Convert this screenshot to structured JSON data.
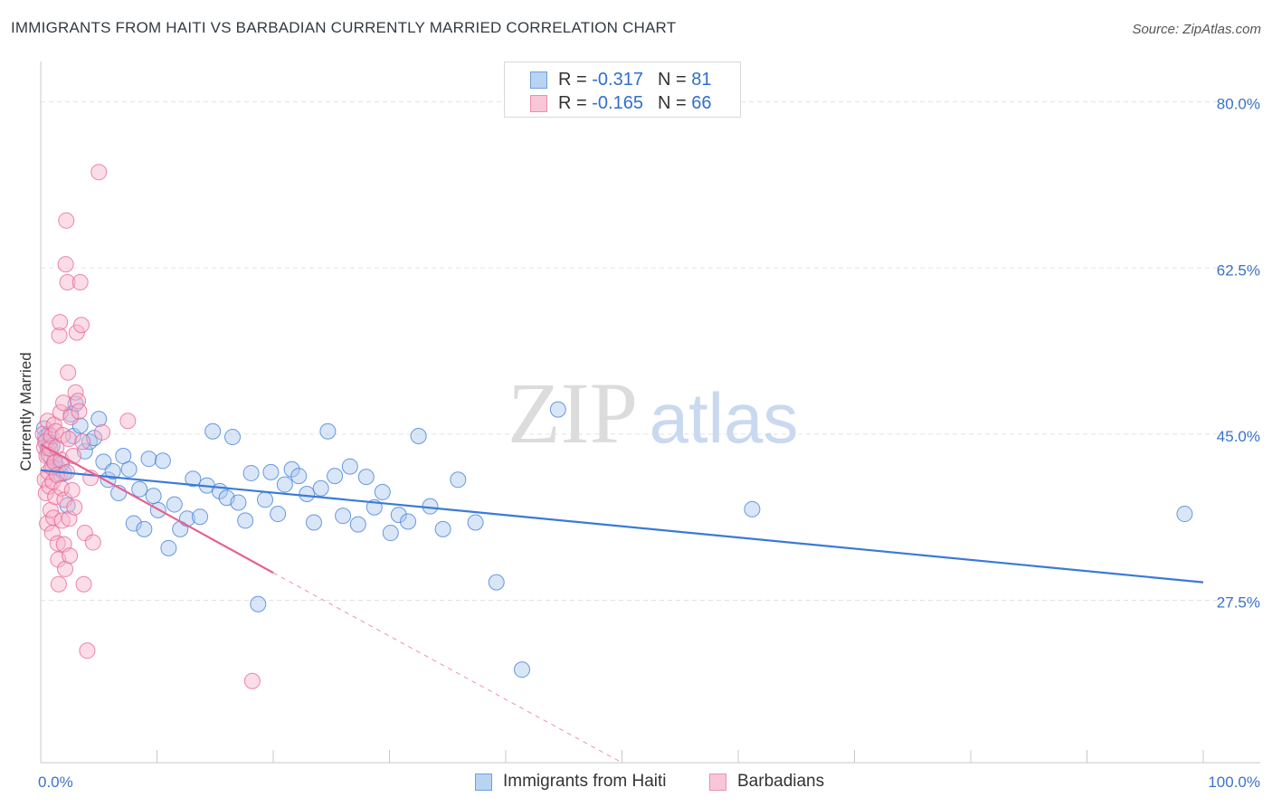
{
  "header": {
    "title": "IMMIGRANTS FROM HAITI VS BARBADIAN CURRENTLY MARRIED CORRELATION CHART",
    "source": "Source: ZipAtlas.com"
  },
  "legend_top": {
    "rows": [
      {
        "r_label": "R =",
        "r_value": "-0.317",
        "n_label": "N =",
        "n_value": "81"
      },
      {
        "r_label": "R =",
        "r_value": "-0.165",
        "n_label": "N =",
        "n_value": "66"
      }
    ]
  },
  "watermark": {
    "zip": "ZIP",
    "atlas": "atlas"
  },
  "colors": {
    "blue": "#3a7ad8",
    "blue_fill": "#aac8f0",
    "pink": "#e8608f",
    "pink_fill": "#f6b3c9",
    "grid": "#e3e3e3",
    "axis_text": "#3a73c8"
  },
  "chart_data": {
    "type": "scatter",
    "title": "IMMIGRANTS FROM HAITI VS BARBADIAN CURRENTLY MARRIED CORRELATION CHART",
    "xlabel": "",
    "ylabel": "Currently Married",
    "xlim": [
      0,
      100
    ],
    "ylim": [
      10.4,
      83.3
    ],
    "x_tick_labels": [
      "0.0%",
      "100.0%"
    ],
    "y_ticks": [
      27.5,
      45.0,
      62.5,
      80.0
    ],
    "y_tick_labels": [
      "27.5%",
      "45.0%",
      "62.5%",
      "80.0%"
    ],
    "series": [
      {
        "name": "Immigrants from Haiti",
        "color": "blue",
        "points": [
          [
            0.3,
            45.6
          ],
          [
            0.4,
            44.7
          ],
          [
            0.5,
            44.3
          ],
          [
            0.6,
            43.5
          ],
          [
            0.7,
            45.0
          ],
          [
            0.8,
            44.1
          ],
          [
            0.9,
            42.6
          ],
          [
            1.0,
            43.8
          ],
          [
            1.1,
            41.5
          ],
          [
            1.2,
            42.2
          ],
          [
            1.5,
            41.4
          ],
          [
            1.7,
            40.8
          ],
          [
            1.8,
            41.9
          ],
          [
            2.0,
            40.9
          ],
          [
            2.3,
            37.5
          ],
          [
            2.6,
            47.1
          ],
          [
            2.8,
            44.8
          ],
          [
            3.0,
            48.2
          ],
          [
            3.4,
            45.9
          ],
          [
            3.8,
            43.2
          ],
          [
            4.2,
            44.2
          ],
          [
            4.6,
            44.6
          ],
          [
            5.0,
            46.6
          ],
          [
            5.4,
            42.1
          ],
          [
            5.8,
            40.2
          ],
          [
            6.2,
            41.1
          ],
          [
            6.7,
            38.8
          ],
          [
            7.1,
            42.7
          ],
          [
            7.6,
            41.3
          ],
          [
            8.0,
            35.6
          ],
          [
            8.5,
            39.2
          ],
          [
            8.9,
            35.0
          ],
          [
            9.3,
            42.4
          ],
          [
            9.7,
            38.5
          ],
          [
            10.1,
            37.0
          ],
          [
            10.5,
            42.2
          ],
          [
            11.0,
            33.0
          ],
          [
            11.5,
            37.6
          ],
          [
            12.0,
            35.0
          ],
          [
            12.6,
            36.1
          ],
          [
            13.1,
            40.3
          ],
          [
            13.7,
            36.3
          ],
          [
            14.3,
            39.6
          ],
          [
            14.8,
            45.3
          ],
          [
            15.4,
            39.0
          ],
          [
            16.0,
            38.3
          ],
          [
            16.5,
            44.7
          ],
          [
            17.0,
            37.8
          ],
          [
            17.6,
            35.9
          ],
          [
            18.1,
            40.9
          ],
          [
            18.7,
            27.1
          ],
          [
            19.3,
            38.1
          ],
          [
            19.8,
            41.0
          ],
          [
            20.4,
            36.6
          ],
          [
            21.0,
            39.7
          ],
          [
            21.6,
            41.3
          ],
          [
            22.2,
            40.6
          ],
          [
            22.9,
            38.7
          ],
          [
            23.5,
            35.7
          ],
          [
            24.1,
            39.3
          ],
          [
            24.7,
            45.3
          ],
          [
            25.3,
            40.6
          ],
          [
            26.0,
            36.4
          ],
          [
            26.6,
            41.6
          ],
          [
            27.3,
            35.5
          ],
          [
            28.0,
            40.5
          ],
          [
            28.7,
            37.3
          ],
          [
            29.4,
            38.9
          ],
          [
            30.1,
            34.6
          ],
          [
            30.8,
            36.5
          ],
          [
            31.6,
            35.8
          ],
          [
            32.5,
            44.8
          ],
          [
            33.5,
            37.4
          ],
          [
            34.6,
            35.0
          ],
          [
            35.9,
            40.2
          ],
          [
            37.4,
            35.7
          ],
          [
            39.2,
            29.4
          ],
          [
            41.4,
            20.2
          ],
          [
            44.5,
            47.6
          ],
          [
            61.2,
            37.1
          ],
          [
            98.4,
            36.6
          ]
        ],
        "trend": {
          "x1": 0,
          "y1": 41.2,
          "x2": 100,
          "y2": 29.4
        }
      },
      {
        "name": "Barbadians",
        "color": "pink",
        "points": [
          [
            0.2,
            45.0
          ],
          [
            0.3,
            43.6
          ],
          [
            0.35,
            40.2
          ],
          [
            0.4,
            44.2
          ],
          [
            0.45,
            38.8
          ],
          [
            0.5,
            42.7
          ],
          [
            0.55,
            35.6
          ],
          [
            0.6,
            46.4
          ],
          [
            0.65,
            41.0
          ],
          [
            0.7,
            42.8
          ],
          [
            0.75,
            39.5
          ],
          [
            0.8,
            43.5
          ],
          [
            0.85,
            37.0
          ],
          [
            0.9,
            44.8
          ],
          [
            0.95,
            41.5
          ],
          [
            1.0,
            34.6
          ],
          [
            1.05,
            40.0
          ],
          [
            1.1,
            36.2
          ],
          [
            1.15,
            46.0
          ],
          [
            1.2,
            42.0
          ],
          [
            1.25,
            38.4
          ],
          [
            1.3,
            45.3
          ],
          [
            1.35,
            43.6
          ],
          [
            1.4,
            40.7
          ],
          [
            1.45,
            33.5
          ],
          [
            1.5,
            31.8
          ],
          [
            1.55,
            29.2
          ],
          [
            1.6,
            55.4
          ],
          [
            1.65,
            56.8
          ],
          [
            1.7,
            47.3
          ],
          [
            1.75,
            42.3
          ],
          [
            1.8,
            39.3
          ],
          [
            1.85,
            35.9
          ],
          [
            1.9,
            44.9
          ],
          [
            1.95,
            48.3
          ],
          [
            2.0,
            33.4
          ],
          [
            2.05,
            38.1
          ],
          [
            2.1,
            30.8
          ],
          [
            2.15,
            62.9
          ],
          [
            2.2,
            67.5
          ],
          [
            2.25,
            41.0
          ],
          [
            2.3,
            61.0
          ],
          [
            2.35,
            51.5
          ],
          [
            2.4,
            44.5
          ],
          [
            2.45,
            36.1
          ],
          [
            2.5,
            32.2
          ],
          [
            2.6,
            46.8
          ],
          [
            2.7,
            39.1
          ],
          [
            2.8,
            42.7
          ],
          [
            2.9,
            37.3
          ],
          [
            3.0,
            49.4
          ],
          [
            3.1,
            55.7
          ],
          [
            3.2,
            48.5
          ],
          [
            3.3,
            47.4
          ],
          [
            3.4,
            61.0
          ],
          [
            3.5,
            56.5
          ],
          [
            3.6,
            44.2
          ],
          [
            3.7,
            29.2
          ],
          [
            3.8,
            34.6
          ],
          [
            4.0,
            22.2
          ],
          [
            4.3,
            40.4
          ],
          [
            4.5,
            33.6
          ],
          [
            5.0,
            72.6
          ],
          [
            5.3,
            45.2
          ],
          [
            7.5,
            46.4
          ],
          [
            18.2,
            19.0
          ]
        ],
        "trend": {
          "x1": 0,
          "y1": 43.9,
          "x2": 20,
          "y2": 30.4
        },
        "trend_extension": {
          "x1": 20,
          "y1": 30.4,
          "x2": 50,
          "y2": 10.4
        }
      }
    ],
    "legend": [
      {
        "name": "Immigrants from Haiti",
        "color": "blue"
      },
      {
        "name": "Barbadians",
        "color": "pink"
      }
    ]
  }
}
